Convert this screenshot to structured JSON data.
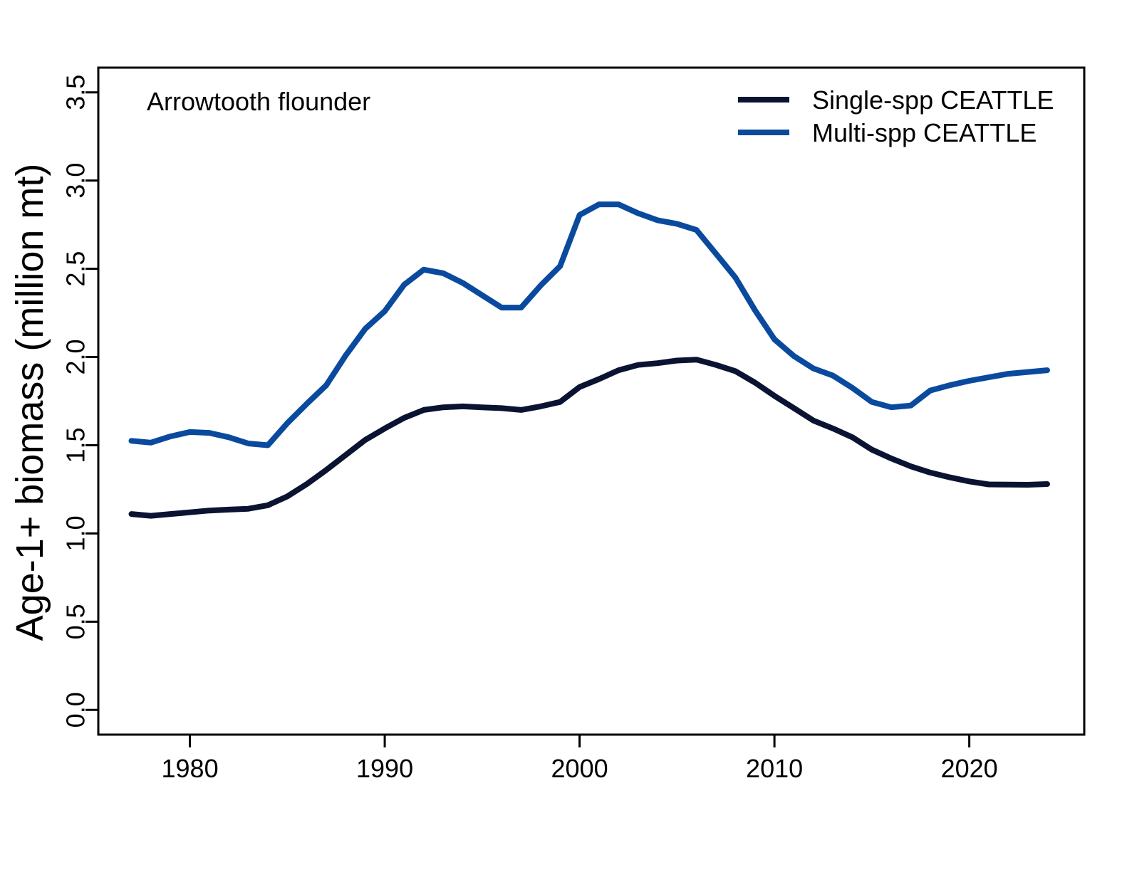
{
  "chart_data": {
    "type": "line",
    "annotation": "Arrowtooth flounder",
    "ylabel": "Age-1+ biomass (million mt)",
    "xlabel": "",
    "xlim": [
      1975.3,
      2025.9
    ],
    "ylim": [
      -0.14,
      3.64
    ],
    "xticks": [
      1980,
      1990,
      2000,
      2010,
      2020
    ],
    "yticks": [
      0.0,
      0.5,
      1.0,
      1.5,
      2.0,
      2.5,
      3.0,
      3.5
    ],
    "ytick_labels": [
      "0.0",
      "0.5",
      "1.0",
      "1.5",
      "2.0",
      "2.5",
      "3.0",
      "3.5"
    ],
    "grid": false,
    "legend_position": "top-right",
    "x": [
      1977,
      1978,
      1979,
      1980,
      1981,
      1982,
      1983,
      1984,
      1985,
      1986,
      1987,
      1988,
      1989,
      1990,
      1991,
      1992,
      1993,
      1994,
      1995,
      1996,
      1997,
      1998,
      1999,
      2000,
      2001,
      2002,
      2003,
      2004,
      2005,
      2006,
      2007,
      2008,
      2009,
      2010,
      2011,
      2012,
      2013,
      2014,
      2015,
      2016,
      2017,
      2018,
      2019,
      2020,
      2021,
      2022,
      2023,
      2024
    ],
    "series": [
      {
        "name": "Single-spp CEATTLE",
        "color": "#0b1332",
        "values": [
          1.11,
          1.1,
          1.11,
          1.12,
          1.13,
          1.135,
          1.14,
          1.16,
          1.21,
          1.28,
          1.36,
          1.445,
          1.53,
          1.595,
          1.655,
          1.7,
          1.715,
          1.72,
          1.715,
          1.71,
          1.7,
          1.72,
          1.745,
          1.83,
          1.875,
          1.925,
          1.955,
          1.965,
          1.98,
          1.985,
          1.955,
          1.92,
          1.855,
          1.78,
          1.71,
          1.64,
          1.595,
          1.545,
          1.475,
          1.425,
          1.38,
          1.345,
          1.318,
          1.295,
          1.278,
          1.277,
          1.276,
          1.28
        ]
      },
      {
        "name": "Multi-spp CEATTLE",
        "color": "#0a4a9e",
        "values": [
          1.525,
          1.515,
          1.55,
          1.575,
          1.57,
          1.545,
          1.51,
          1.5,
          1.625,
          1.735,
          1.84,
          2.01,
          2.16,
          2.26,
          2.41,
          2.495,
          2.475,
          2.42,
          2.35,
          2.28,
          2.28,
          2.405,
          2.515,
          2.805,
          2.865,
          2.865,
          2.815,
          2.775,
          2.755,
          2.72,
          2.585,
          2.45,
          2.265,
          2.1,
          2.005,
          1.935,
          1.895,
          1.825,
          1.745,
          1.715,
          1.725,
          1.81,
          1.84,
          1.865,
          1.885,
          1.905,
          1.915,
          1.925
        ]
      }
    ]
  }
}
